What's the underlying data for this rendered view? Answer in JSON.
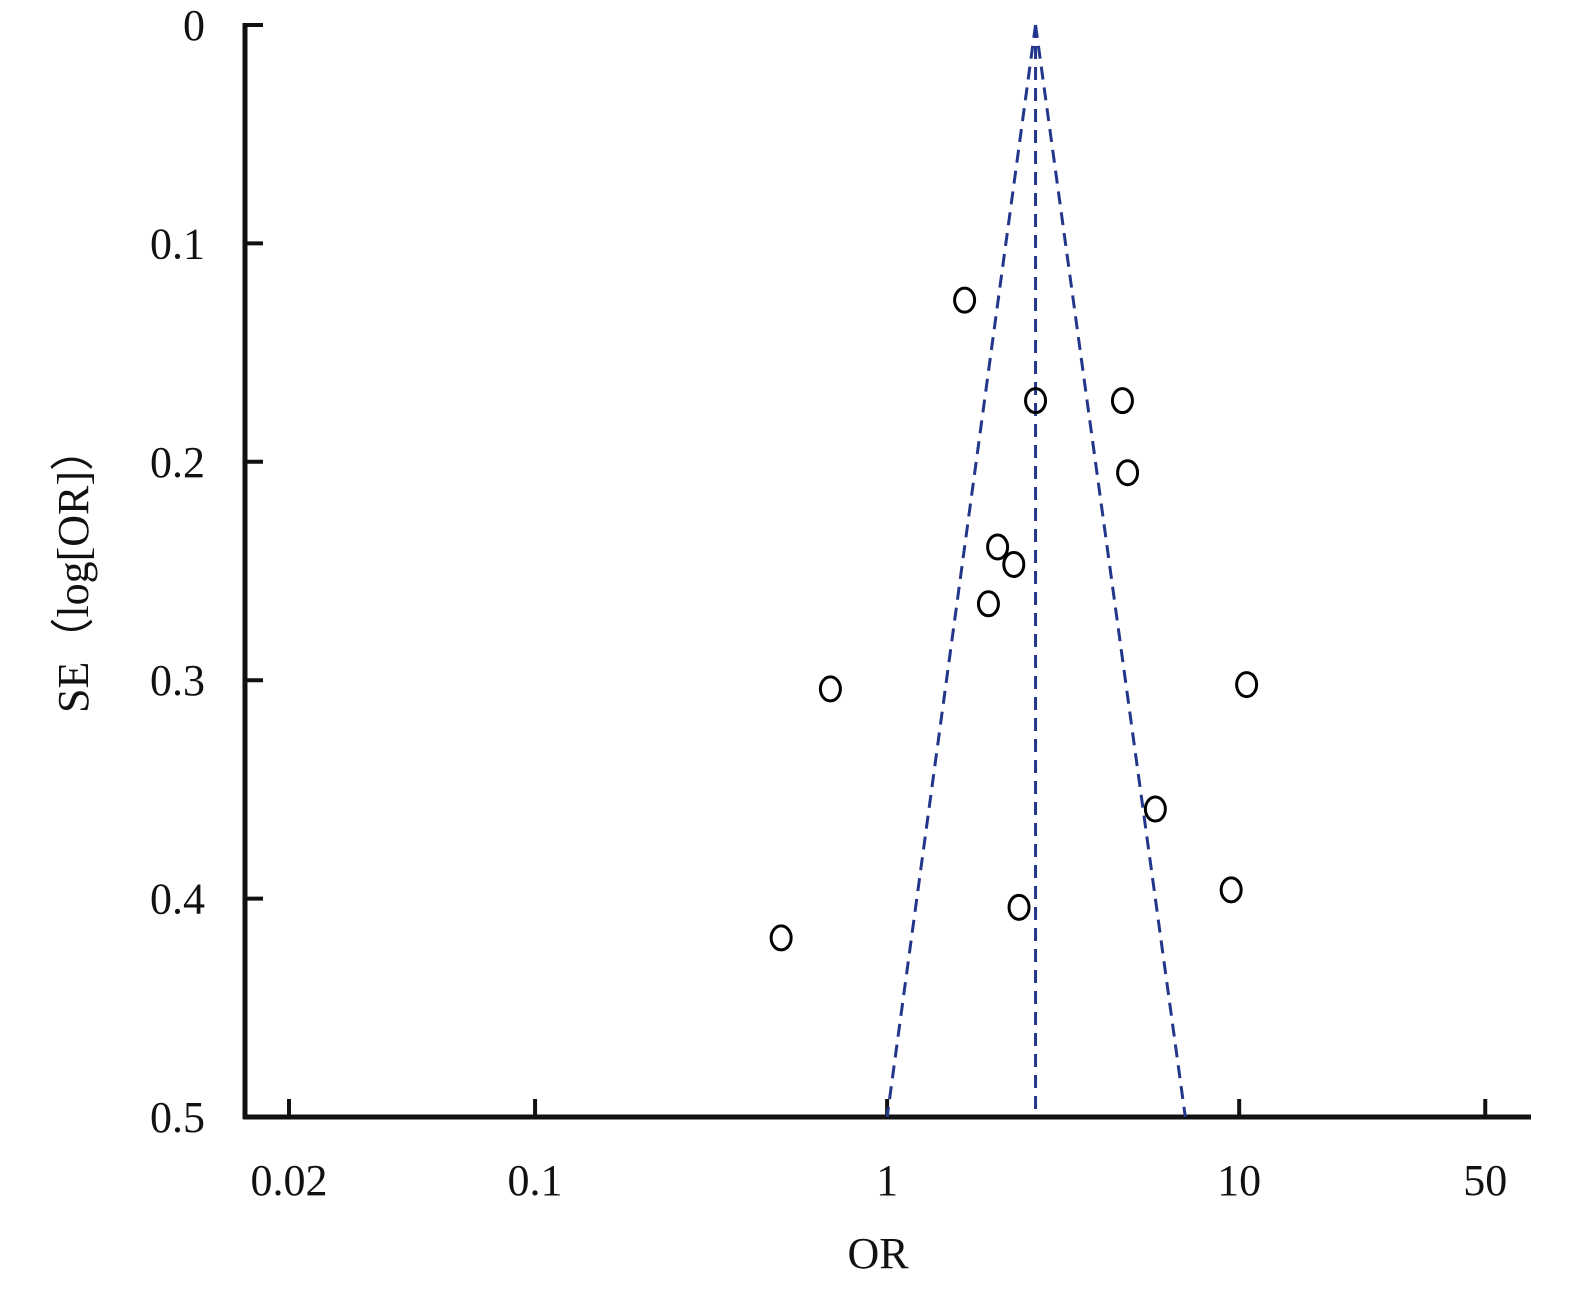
{
  "chart_data": {
    "type": "scatter",
    "x_label": "OR",
    "y_label": "SE（log[OR]）",
    "x_log": true,
    "y_inverted": true,
    "xlim": [
      0.015,
      67
    ],
    "ylim": [
      0,
      0.5
    ],
    "xticks": [
      0.02,
      0.1,
      1,
      10,
      50
    ],
    "yticks": [
      0,
      0.1,
      0.2,
      0.3,
      0.4,
      0.5
    ],
    "series": [
      {
        "color": "#000000",
        "x": [
          1.66,
          2.64,
          4.66,
          4.82,
          2.06,
          2.29,
          1.94,
          0.69,
          10.5,
          5.78,
          9.49,
          2.37,
          0.5
        ],
        "values": [
          0.126,
          0.172,
          0.172,
          0.205,
          0.239,
          0.247,
          0.265,
          0.304,
          0.302,
          0.359,
          0.396,
          0.404,
          0.418
        ]
      }
    ],
    "funnel_color": "#22368c",
    "funnel_lines": [
      {
        "x": [
          2.64,
          1.0
        ],
        "values": [
          0,
          0.5
        ]
      },
      {
        "x": [
          2.64,
          2.64
        ],
        "values": [
          0,
          0.5
        ]
      },
      {
        "x": [
          2.64,
          7.03
        ],
        "values": [
          0,
          0.5
        ]
      }
    ]
  }
}
